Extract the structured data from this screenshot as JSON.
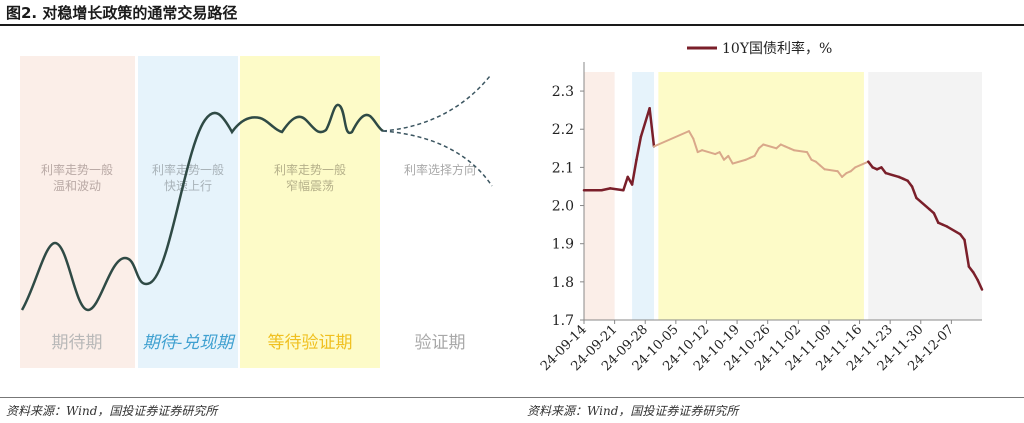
{
  "figure_title": "图2. 对稳增长政策的通常交易路径",
  "left": {
    "phases": [
      {
        "label": "期待期",
        "desc1": "利率走势一般",
        "desc2": "温和波动",
        "color": "#fbeee8",
        "label_color": "#b8b8b8"
      },
      {
        "label": "期待-兑现期",
        "desc1": "利率走势一般",
        "desc2": "快速上行",
        "color": "#e6f3fb",
        "label_color": "#3fa0d0"
      },
      {
        "label": "等待验证期",
        "desc1": "利率走势一般",
        "desc2": "窄幅震荡",
        "color": "#fdfbc8",
        "label_color": "#f0c020"
      },
      {
        "label": "验证期",
        "desc1": "利率选择方向",
        "desc2": "",
        "color": "#ffffff",
        "label_color": "#a8a8a8"
      }
    ],
    "line_color": "#2f4a45",
    "dashed_color": "#3b5560"
  },
  "chart_data": {
    "type": "line",
    "title": "",
    "legend": [
      "10Y国债利率，%"
    ],
    "legend_placement": "top",
    "ylim": [
      1.7,
      2.35
    ],
    "yticks": [
      1.7,
      1.8,
      1.9,
      2.0,
      2.1,
      2.2,
      2.3
    ],
    "xtick_labels": [
      "24-09-14",
      "24-09-21",
      "24-09-28",
      "24-10-05",
      "24-10-12",
      "24-10-19",
      "24-10-26",
      "24-11-02",
      "24-11-09",
      "24-11-16",
      "24-11-23",
      "24-11-30",
      "24-12-07"
    ],
    "x_start": "24-09-14",
    "x_end": "24-12-14",
    "grid": false,
    "series": [
      {
        "name": "10Y国债利率，%",
        "color": "#7a1f2a",
        "points": [
          [
            "24-09-14",
            2.04
          ],
          [
            "24-09-18",
            2.04
          ],
          [
            "24-09-20",
            2.045
          ],
          [
            "24-09-23",
            2.04
          ],
          [
            "24-09-24",
            2.075
          ],
          [
            "24-09-25",
            2.055
          ],
          [
            "24-09-26",
            2.12
          ],
          [
            "24-09-27",
            2.18
          ],
          [
            "24-09-29",
            2.255
          ],
          [
            "24-09-30",
            2.155
          ],
          [
            "24-10-01",
            2.16
          ],
          [
            "24-10-08",
            2.195
          ],
          [
            "24-10-09",
            2.175
          ],
          [
            "24-10-10",
            2.14
          ],
          [
            "24-10-11",
            2.145
          ],
          [
            "24-10-14",
            2.135
          ],
          [
            "24-10-15",
            2.14
          ],
          [
            "24-10-16",
            2.12
          ],
          [
            "24-10-17",
            2.13
          ],
          [
            "24-10-18",
            2.11
          ],
          [
            "24-10-21",
            2.12
          ],
          [
            "24-10-22",
            2.125
          ],
          [
            "24-10-23",
            2.13
          ],
          [
            "24-10-24",
            2.15
          ],
          [
            "24-10-25",
            2.16
          ],
          [
            "24-10-28",
            2.15
          ],
          [
            "24-10-29",
            2.16
          ],
          [
            "24-10-30",
            2.155
          ],
          [
            "24-10-31",
            2.15
          ],
          [
            "24-11-01",
            2.145
          ],
          [
            "24-11-04",
            2.14
          ],
          [
            "24-11-05",
            2.12
          ],
          [
            "24-11-06",
            2.115
          ],
          [
            "24-11-07",
            2.105
          ],
          [
            "24-11-08",
            2.095
          ],
          [
            "24-11-11",
            2.09
          ],
          [
            "24-11-12",
            2.075
          ],
          [
            "24-11-13",
            2.085
          ],
          [
            "24-11-14",
            2.09
          ],
          [
            "24-11-15",
            2.1
          ],
          [
            "24-11-18",
            2.115
          ],
          [
            "24-11-19",
            2.1
          ],
          [
            "24-11-20",
            2.095
          ],
          [
            "24-11-21",
            2.1
          ],
          [
            "24-11-22",
            2.085
          ],
          [
            "24-11-25",
            2.075
          ],
          [
            "24-11-26",
            2.07
          ],
          [
            "24-11-27",
            2.065
          ],
          [
            "24-11-28",
            2.05
          ],
          [
            "24-11-29",
            2.02
          ],
          [
            "24-12-02",
            1.99
          ],
          [
            "24-12-03",
            1.98
          ],
          [
            "24-12-04",
            1.955
          ],
          [
            "24-12-05",
            1.95
          ],
          [
            "24-12-06",
            1.945
          ],
          [
            "24-12-09",
            1.925
          ],
          [
            "24-12-10",
            1.91
          ],
          [
            "24-12-11",
            1.84
          ],
          [
            "24-12-12",
            1.825
          ],
          [
            "24-12-13",
            1.805
          ],
          [
            "24-12-14",
            1.78
          ]
        ]
      }
    ],
    "bands": [
      {
        "from": "24-09-14",
        "to": "24-09-21",
        "color": "#fbeee8"
      },
      {
        "from": "24-09-25",
        "to": "24-09-30",
        "color": "#e6f3fb"
      },
      {
        "from": "24-10-01",
        "to": "24-11-17",
        "color": "#fdfbc8"
      },
      {
        "from": "24-11-18",
        "to": "24-12-14",
        "color": "#f3f3f3"
      }
    ],
    "highlight": {
      "bold_from": "24-09-14",
      "bold_to": "24-09-30",
      "bold_from2": "24-11-18",
      "dim_color": "#d9a88a"
    }
  },
  "sources": {
    "left": "资料来源：Wind，国投证券证券研究所",
    "right": "资料来源：Wind，国投证券证券研究所"
  }
}
